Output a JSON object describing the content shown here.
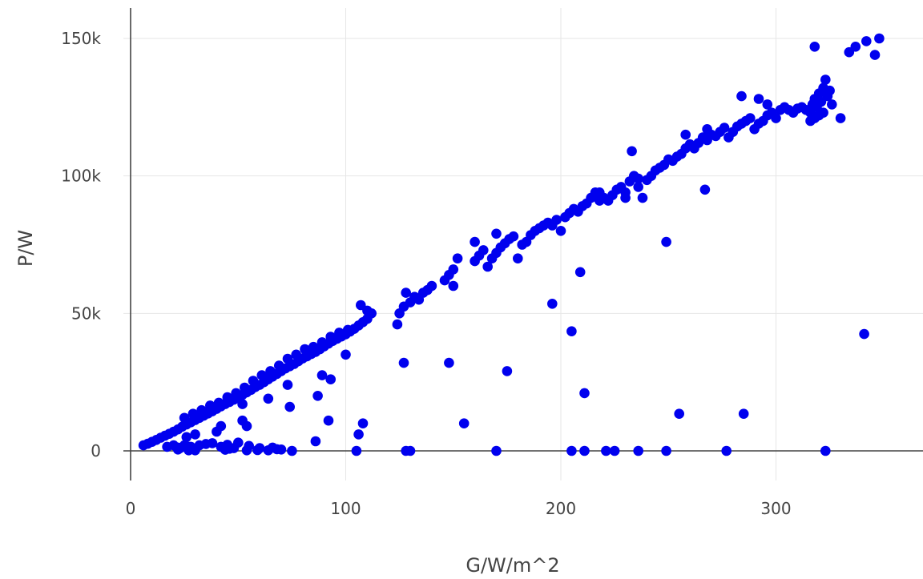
{
  "chart_data": {
    "type": "scatter",
    "title": "",
    "xlabel": "G/W/m^2",
    "ylabel": "P/W",
    "xlim": [
      0,
      365
    ],
    "ylim": [
      -8000,
      155000
    ],
    "grid": true,
    "marker_color": "#0000ee",
    "x_ticks": [
      {
        "value": 0,
        "label": "0"
      },
      {
        "value": 100,
        "label": "100"
      },
      {
        "value": 200,
        "label": "200"
      },
      {
        "value": 300,
        "label": "300"
      }
    ],
    "y_ticks": [
      {
        "value": 0,
        "label": "0"
      },
      {
        "value": 50000,
        "label": "50k"
      },
      {
        "value": 100000,
        "label": "100k"
      },
      {
        "value": 150000,
        "label": "150k"
      }
    ],
    "series": [
      {
        "points": [
          [
            6,
            2000
          ],
          [
            8,
            2600
          ],
          [
            10,
            3300
          ],
          [
            12,
            4000
          ],
          [
            14,
            4800
          ],
          [
            16,
            5500
          ],
          [
            18,
            6200
          ],
          [
            20,
            7000
          ],
          [
            22,
            7800
          ],
          [
            24,
            8800
          ],
          [
            26,
            9600
          ],
          [
            28,
            10400
          ],
          [
            30,
            11200
          ],
          [
            32,
            12000
          ],
          [
            34,
            12800
          ],
          [
            36,
            13600
          ],
          [
            38,
            14400
          ],
          [
            40,
            15300
          ],
          [
            42,
            16200
          ],
          [
            44,
            17000
          ],
          [
            46,
            17800
          ],
          [
            48,
            18600
          ],
          [
            50,
            19600
          ],
          [
            52,
            20400
          ],
          [
            54,
            21300
          ],
          [
            56,
            22200
          ],
          [
            58,
            23200
          ],
          [
            60,
            24000
          ],
          [
            62,
            25000
          ],
          [
            64,
            26000
          ],
          [
            66,
            27000
          ],
          [
            68,
            28000
          ],
          [
            70,
            29000
          ],
          [
            72,
            30000
          ],
          [
            74,
            30800
          ],
          [
            76,
            31600
          ],
          [
            78,
            32600
          ],
          [
            80,
            33600
          ],
          [
            82,
            34400
          ],
          [
            84,
            35200
          ],
          [
            86,
            36000
          ],
          [
            88,
            37000
          ],
          [
            90,
            38000
          ],
          [
            92,
            39000
          ],
          [
            94,
            40000
          ],
          [
            96,
            40800
          ],
          [
            98,
            41600
          ],
          [
            100,
            42400
          ],
          [
            102,
            43400
          ],
          [
            104,
            44400
          ],
          [
            106,
            45600
          ],
          [
            108,
            46800
          ],
          [
            110,
            48000
          ],
          [
            112,
            50000
          ],
          [
            107,
            53000
          ],
          [
            110,
            51000
          ],
          [
            25,
            12000
          ],
          [
            29,
            13500
          ],
          [
            33,
            14800
          ],
          [
            37,
            16500
          ],
          [
            41,
            17500
          ],
          [
            45,
            19500
          ],
          [
            49,
            21000
          ],
          [
            53,
            23000
          ],
          [
            57,
            25500
          ],
          [
            61,
            27500
          ],
          [
            65,
            29000
          ],
          [
            69,
            31000
          ],
          [
            73,
            33500
          ],
          [
            77,
            35000
          ],
          [
            81,
            37000
          ],
          [
            85,
            37800
          ],
          [
            89,
            39500
          ],
          [
            93,
            41500
          ],
          [
            97,
            43000
          ],
          [
            101,
            44000
          ],
          [
            124,
            46000
          ],
          [
            125,
            50000
          ],
          [
            127,
            52500
          ],
          [
            130,
            54000
          ],
          [
            132,
            56000
          ],
          [
            134,
            55000
          ],
          [
            136,
            57500
          ],
          [
            138,
            58500
          ],
          [
            140,
            60000
          ],
          [
            128,
            57500
          ],
          [
            146,
            62000
          ],
          [
            148,
            64000
          ],
          [
            150,
            66000
          ],
          [
            152,
            70000
          ],
          [
            150,
            60000
          ],
          [
            160,
            69000
          ],
          [
            162,
            71000
          ],
          [
            164,
            73000
          ],
          [
            166,
            67000
          ],
          [
            168,
            70000
          ],
          [
            160,
            76000
          ],
          [
            170,
            72000
          ],
          [
            172,
            74000
          ],
          [
            174,
            75500
          ],
          [
            176,
            77000
          ],
          [
            178,
            78000
          ],
          [
            170,
            79000
          ],
          [
            180,
            70000
          ],
          [
            182,
            75000
          ],
          [
            184,
            76000
          ],
          [
            186,
            78500
          ],
          [
            188,
            80000
          ],
          [
            190,
            81000
          ],
          [
            192,
            82000
          ],
          [
            194,
            83000
          ],
          [
            196,
            82000
          ],
          [
            198,
            84000
          ],
          [
            200,
            80000
          ],
          [
            202,
            85000
          ],
          [
            204,
            86500
          ],
          [
            206,
            88000
          ],
          [
            208,
            87000
          ],
          [
            210,
            89000
          ],
          [
            212,
            90000
          ],
          [
            214,
            92000
          ],
          [
            216,
            94000
          ],
          [
            218,
            91000
          ],
          [
            220,
            92000
          ],
          [
            222,
            91000
          ],
          [
            224,
            93000
          ],
          [
            226,
            95000
          ],
          [
            228,
            96000
          ],
          [
            230,
            94000
          ],
          [
            232,
            98000
          ],
          [
            234,
            100000
          ],
          [
            236,
            99000
          ],
          [
            238,
            92000
          ],
          [
            240,
            98500
          ],
          [
            242,
            100000
          ],
          [
            244,
            102000
          ],
          [
            246,
            103000
          ],
          [
            248,
            104000
          ],
          [
            250,
            106000
          ],
          [
            252,
            105500
          ],
          [
            254,
            107000
          ],
          [
            256,
            108000
          ],
          [
            258,
            110000
          ],
          [
            260,
            111500
          ],
          [
            262,
            110000
          ],
          [
            264,
            112000
          ],
          [
            266,
            114000
          ],
          [
            268,
            113000
          ],
          [
            270,
            115000
          ],
          [
            272,
            114500
          ],
          [
            274,
            116000
          ],
          [
            276,
            117500
          ],
          [
            278,
            114000
          ],
          [
            280,
            116000
          ],
          [
            282,
            118000
          ],
          [
            284,
            119000
          ],
          [
            286,
            120000
          ],
          [
            288,
            121000
          ],
          [
            290,
            117000
          ],
          [
            292,
            119000
          ],
          [
            294,
            120000
          ],
          [
            296,
            122000
          ],
          [
            298,
            123000
          ],
          [
            300,
            121000
          ],
          [
            302,
            124000
          ],
          [
            304,
            125000
          ],
          [
            306,
            124000
          ],
          [
            308,
            123000
          ],
          [
            310,
            124500
          ],
          [
            312,
            125000
          ],
          [
            314,
            124000
          ],
          [
            316,
            123000
          ],
          [
            317,
            126000
          ],
          [
            318,
            128000
          ],
          [
            319,
            125000
          ],
          [
            320,
            130000
          ],
          [
            321,
            127000
          ],
          [
            322,
            132000
          ],
          [
            323,
            135000
          ],
          [
            324,
            129000
          ],
          [
            325,
            131000
          ],
          [
            326,
            126000
          ],
          [
            318,
            121000
          ],
          [
            320,
            122000
          ],
          [
            322,
            123000
          ],
          [
            316,
            120000
          ],
          [
            233,
            109000
          ],
          [
            258,
            115000
          ],
          [
            268,
            117000
          ],
          [
            284,
            129000
          ],
          [
            292,
            128000
          ],
          [
            296,
            126000
          ],
          [
            318,
            147000
          ],
          [
            334,
            145000
          ],
          [
            337,
            147000
          ],
          [
            342,
            149000
          ],
          [
            346,
            144000
          ],
          [
            348,
            150000
          ],
          [
            330,
            121000
          ],
          [
            230,
            92000
          ],
          [
            236,
            96000
          ],
          [
            218,
            94000
          ],
          [
            22,
            1200
          ],
          [
            28,
            1000
          ],
          [
            32,
            2000
          ],
          [
            35,
            2500
          ],
          [
            38,
            2800
          ],
          [
            42,
            1500
          ],
          [
            46,
            800
          ],
          [
            50,
            3000
          ],
          [
            55,
            1800
          ],
          [
            60,
            1000
          ],
          [
            25,
            2000
          ],
          [
            27,
            1500
          ],
          [
            45,
            2200
          ],
          [
            68,
            600
          ],
          [
            66,
            1200
          ],
          [
            23,
            1000
          ],
          [
            17,
            1500
          ],
          [
            22,
            500
          ],
          [
            27,
            200
          ],
          [
            28,
            1500
          ],
          [
            30,
            200
          ],
          [
            44,
            400
          ],
          [
            48,
            1000
          ],
          [
            54,
            200
          ],
          [
            59,
            300
          ],
          [
            64,
            200
          ],
          [
            70,
            500
          ],
          [
            75,
            0
          ],
          [
            86,
            3500
          ],
          [
            106,
            6000
          ],
          [
            108,
            10000
          ],
          [
            92,
            11000
          ],
          [
            74,
            16000
          ],
          [
            87,
            20000
          ],
          [
            93,
            26000
          ],
          [
            89,
            27500
          ],
          [
            100,
            35000
          ],
          [
            73,
            24000
          ],
          [
            64,
            19000
          ],
          [
            52,
            17000
          ],
          [
            54,
            9000
          ],
          [
            52,
            11000
          ],
          [
            42,
            9000
          ],
          [
            40,
            7000
          ],
          [
            30,
            6000
          ],
          [
            26,
            5000
          ],
          [
            20,
            2000
          ],
          [
            127,
            32000
          ],
          [
            148,
            32000
          ],
          [
            175,
            29000
          ],
          [
            196,
            53500
          ],
          [
            205,
            43500
          ],
          [
            209,
            65000
          ],
          [
            211,
            21000
          ],
          [
            249,
            76000
          ],
          [
            267,
            95000
          ],
          [
            255,
            13500
          ],
          [
            285,
            13500
          ],
          [
            341,
            42500
          ],
          [
            155,
            10000
          ],
          [
            105,
            0
          ],
          [
            128,
            0
          ],
          [
            130,
            0
          ],
          [
            170,
            0
          ],
          [
            205,
            0
          ],
          [
            211,
            0
          ],
          [
            221,
            0
          ],
          [
            225,
            0
          ],
          [
            236,
            0
          ],
          [
            249,
            0
          ],
          [
            277,
            0
          ],
          [
            323,
            0
          ]
        ]
      }
    ]
  }
}
